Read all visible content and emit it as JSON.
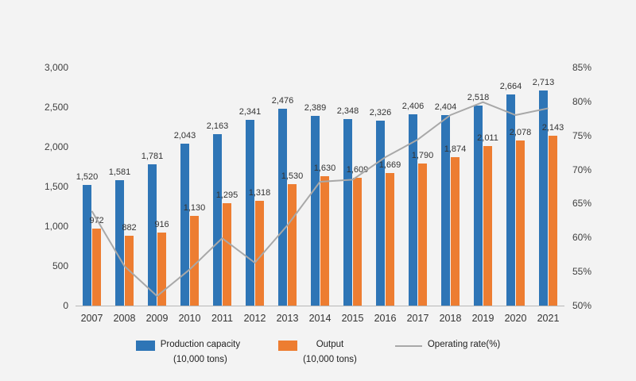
{
  "chart_data": {
    "type": "bar",
    "overlay": "line",
    "title": "",
    "xlabel": "",
    "ylabel": "",
    "grid": false,
    "legend_position": "bottom",
    "categories": [
      "2007",
      "2008",
      "2009",
      "2010",
      "2011",
      "2012",
      "2013",
      "2014",
      "2015",
      "2016",
      "2017",
      "2018",
      "2019",
      "2020",
      "2021"
    ],
    "series": [
      {
        "name": "Production capacity (10,000 tons)",
        "kind": "bar",
        "color": "#2e75b6",
        "values": [
          1520,
          1581,
          1781,
          2043,
          2163,
          2341,
          2476,
          2389,
          2348,
          2326,
          2406,
          2404,
          2518,
          2664,
          2713
        ]
      },
      {
        "name": "Output (10,000 tons)",
        "kind": "bar",
        "color": "#ed7d31",
        "values": [
          972,
          882,
          916,
          1130,
          1295,
          1318,
          1530,
          1630,
          1609,
          1669,
          1790,
          1874,
          2011,
          2078,
          2143
        ]
      },
      {
        "name": "Operating rate(%)",
        "kind": "line",
        "color": "#a8a8a8",
        "axis": "right",
        "values": [
          63.9,
          55.8,
          51.4,
          55.3,
          59.9,
          56.3,
          61.8,
          68.2,
          68.5,
          71.8,
          74.4,
          78.0,
          79.9,
          78.0,
          79.0
        ]
      }
    ],
    "left_axis": {
      "min": 0,
      "max": 3000,
      "tick_values": [
        0,
        500,
        1000,
        1500,
        2000,
        2500,
        3000
      ],
      "tick_labels": [
        "0",
        "500",
        "1,000",
        "1,500",
        "2,000",
        "2,500",
        "3,000"
      ]
    },
    "right_axis": {
      "min": 50,
      "max": 85,
      "tick_values": [
        50,
        55,
        60,
        65,
        70,
        75,
        80,
        85
      ],
      "tick_labels": [
        "50%",
        "55%",
        "60%",
        "65%",
        "70%",
        "75%",
        "80%",
        "85%"
      ]
    }
  },
  "legend": {
    "capacity_label": "Production capacity",
    "capacity_unit": "(10,000 tons)",
    "output_label": "Output",
    "output_unit": "(10,000 tons)",
    "rate_label": "Operating rate(%)"
  },
  "colors": {
    "capacity": "#2e75b6",
    "output": "#ed7d31",
    "rate_line": "#a8a8a8",
    "label_text": "#333333",
    "background": "#f3f3f3"
  }
}
